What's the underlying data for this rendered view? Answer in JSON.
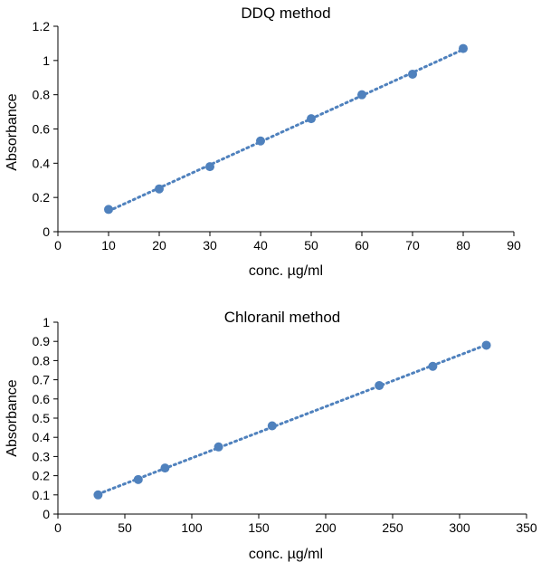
{
  "chart_data": [
    {
      "type": "scatter",
      "title": "DDQ method",
      "xlabel": "conc. µg/ml",
      "ylabel": "Absorbance",
      "xlim": [
        0,
        90
      ],
      "ylim": [
        0,
        1.2
      ],
      "xticks": [
        0,
        10,
        20,
        30,
        40,
        50,
        60,
        70,
        80,
        90
      ],
      "yticks": [
        0,
        0.2,
        0.4,
        0.6,
        0.8,
        1,
        1.2
      ],
      "grid": false,
      "trendline": "linear, dotted",
      "color": "#4f81bd",
      "series": [
        {
          "x": [
            10,
            20,
            30,
            40,
            50,
            60,
            70,
            80
          ],
          "y": [
            0.13,
            0.25,
            0.38,
            0.53,
            0.66,
            0.8,
            0.92,
            1.07
          ]
        }
      ]
    },
    {
      "type": "scatter",
      "title": "Chloranil method",
      "xlabel": "conc. µg/ml",
      "ylabel": "Absorbance",
      "xlim": [
        0,
        350
      ],
      "ylim": [
        0,
        1
      ],
      "xticks": [
        0,
        50,
        100,
        150,
        200,
        250,
        300,
        350
      ],
      "yticks": [
        0,
        0.1,
        0.2,
        0.3,
        0.4,
        0.5,
        0.6,
        0.7,
        0.8,
        0.9,
        1
      ],
      "grid": false,
      "trendline": "linear, dotted",
      "color": "#4f81bd",
      "series": [
        {
          "x": [
            30,
            60,
            80,
            120,
            160,
            240,
            280,
            320
          ],
          "y": [
            0.1,
            0.18,
            0.24,
            0.35,
            0.46,
            0.67,
            0.77,
            0.88
          ]
        }
      ]
    }
  ]
}
